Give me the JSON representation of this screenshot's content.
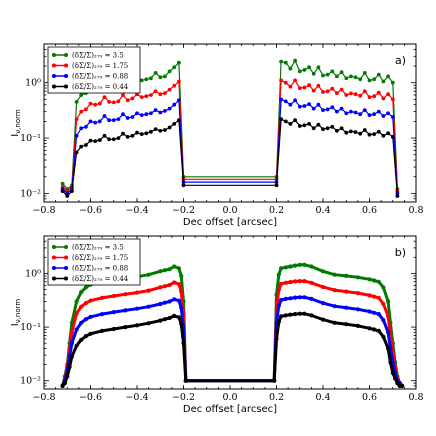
{
  "chart_data": [
    {
      "type": "line",
      "panel_label": "a)",
      "xlabel": "Dec offset [arcsec]",
      "ylabel": "Iₖ,norm",
      "ylabel_main": "I",
      "ylabel_sub": "ν,norm",
      "xlim": [
        -0.8,
        0.8
      ],
      "ylim": [
        0.007,
        5
      ],
      "yscale": "log",
      "xticks": [
        "−0.8",
        "−0.6",
        "−0.4",
        "−0.2",
        "0.0",
        "0.2",
        "0.4",
        "0.6",
        "0.8"
      ],
      "yticks": [
        "10⁻²",
        "10⁻¹",
        "10⁰"
      ],
      "legend_position": "top-left",
      "x": [
        -0.72,
        -0.7,
        -0.68,
        -0.66,
        -0.64,
        -0.62,
        -0.6,
        -0.58,
        -0.56,
        -0.54,
        -0.52,
        -0.5,
        -0.48,
        -0.46,
        -0.44,
        -0.42,
        -0.4,
        -0.38,
        -0.36,
        -0.34,
        -0.32,
        -0.3,
        -0.28,
        -0.26,
        -0.24,
        -0.22,
        -0.2,
        0.2,
        0.22,
        0.24,
        0.26,
        0.28,
        0.3,
        0.32,
        0.34,
        0.36,
        0.38,
        0.4,
        0.42,
        0.44,
        0.46,
        0.48,
        0.5,
        0.52,
        0.54,
        0.56,
        0.58,
        0.6,
        0.62,
        0.64,
        0.66,
        0.68,
        0.7,
        0.72
      ],
      "series": [
        {
          "name": "(δΣ/Σ)₂₇₉ = 3.5",
          "color": "#007a00",
          "values": [
            0.015,
            0.012,
            0.014,
            0.45,
            0.6,
            0.65,
            0.9,
            0.8,
            0.85,
            1.2,
            0.95,
            0.9,
            0.92,
            1.3,
            0.98,
            1.05,
            1.3,
            1.1,
            1.15,
            1.2,
            1.5,
            1.25,
            1.3,
            1.6,
            1.9,
            2.3,
            0.02,
            0.02,
            2.4,
            2.3,
            1.8,
            2.5,
            1.6,
            1.7,
            1.9,
            1.45,
            1.9,
            1.35,
            1.4,
            1.6,
            1.3,
            1.55,
            1.2,
            1.3,
            1.25,
            1.15,
            1.5,
            1.1,
            1.15,
            1.4,
            1.05,
            1.3,
            1.0,
            0.012
          ]
        },
        {
          "name": "(δΣ/Σ)₂₇₉ = 1.75",
          "color": "#ff0000",
          "values": [
            0.013,
            0.011,
            0.013,
            0.22,
            0.3,
            0.33,
            0.42,
            0.4,
            0.42,
            0.55,
            0.45,
            0.44,
            0.46,
            0.6,
            0.48,
            0.52,
            0.62,
            0.55,
            0.57,
            0.6,
            0.7,
            0.62,
            0.65,
            0.75,
            0.88,
            1.05,
            0.018,
            0.018,
            1.1,
            1.0,
            0.85,
            1.1,
            0.8,
            0.82,
            0.9,
            0.72,
            0.88,
            0.68,
            0.7,
            0.78,
            0.65,
            0.75,
            0.6,
            0.64,
            0.62,
            0.58,
            0.7,
            0.55,
            0.57,
            0.66,
            0.52,
            0.62,
            0.5,
            0.011
          ]
        },
        {
          "name": "(δΣ/Σ)₂₇₉ = 0.88",
          "color": "#0000ff",
          "values": [
            0.012,
            0.01,
            0.012,
            0.11,
            0.15,
            0.16,
            0.2,
            0.19,
            0.2,
            0.25,
            0.21,
            0.21,
            0.22,
            0.27,
            0.23,
            0.24,
            0.28,
            0.26,
            0.27,
            0.28,
            0.32,
            0.29,
            0.31,
            0.34,
            0.4,
            0.48,
            0.016,
            0.016,
            0.5,
            0.46,
            0.4,
            0.48,
            0.37,
            0.38,
            0.41,
            0.34,
            0.4,
            0.32,
            0.33,
            0.36,
            0.3,
            0.34,
            0.28,
            0.3,
            0.29,
            0.27,
            0.32,
            0.26,
            0.27,
            0.3,
            0.25,
            0.28,
            0.24,
            0.01
          ]
        },
        {
          "name": "(δΣ/Σ)₂₇₉ = 0.44",
          "color": "#000000",
          "values": [
            0.011,
            0.009,
            0.011,
            0.055,
            0.07,
            0.075,
            0.09,
            0.088,
            0.092,
            0.11,
            0.095,
            0.095,
            0.1,
            0.12,
            0.105,
            0.11,
            0.125,
            0.118,
            0.122,
            0.13,
            0.145,
            0.135,
            0.14,
            0.155,
            0.18,
            0.21,
            0.014,
            0.014,
            0.22,
            0.2,
            0.18,
            0.21,
            0.165,
            0.17,
            0.18,
            0.15,
            0.175,
            0.145,
            0.15,
            0.16,
            0.135,
            0.15,
            0.125,
            0.132,
            0.128,
            0.12,
            0.14,
            0.115,
            0.118,
            0.13,
            0.11,
            0.122,
            0.105,
            0.009
          ]
        }
      ]
    },
    {
      "type": "line",
      "panel_label": "b)",
      "xlabel": "Dec offset [arcsec]",
      "ylabel": "Iₖ,norm",
      "ylabel_main": "I",
      "ylabel_sub": "ν,norm",
      "xlim": [
        -0.8,
        0.8
      ],
      "ylim": [
        0.007,
        5
      ],
      "yscale": "log",
      "xticks": [
        "−0.8",
        "−0.6",
        "−0.4",
        "−0.2",
        "0.0",
        "0.2",
        "0.4",
        "0.6",
        "0.8"
      ],
      "yticks": [
        "10⁻²",
        "10⁻¹",
        "10⁰"
      ],
      "legend_position": "top-left",
      "x": [
        -0.72,
        -0.71,
        -0.7,
        -0.69,
        -0.68,
        -0.66,
        -0.64,
        -0.62,
        -0.6,
        -0.55,
        -0.5,
        -0.45,
        -0.4,
        -0.35,
        -0.3,
        -0.28,
        -0.26,
        -0.24,
        -0.22,
        -0.21,
        -0.2,
        -0.19,
        0.19,
        0.2,
        0.21,
        0.22,
        0.24,
        0.26,
        0.28,
        0.3,
        0.32,
        0.35,
        0.4,
        0.45,
        0.5,
        0.55,
        0.6,
        0.62,
        0.64,
        0.66,
        0.68,
        0.69,
        0.7,
        0.71,
        0.72,
        0.73,
        0.74
      ],
      "series": [
        {
          "name": "(δΣ/Σ)₂₇₉ = 3.5",
          "color": "#007a00",
          "values": [
            0.008,
            0.012,
            0.02,
            0.05,
            0.12,
            0.3,
            0.45,
            0.55,
            0.62,
            0.7,
            0.75,
            0.8,
            0.87,
            0.95,
            1.1,
            1.15,
            1.2,
            1.35,
            1.25,
            0.9,
            0.3,
            0.01,
            0.01,
            0.4,
            0.95,
            1.25,
            1.3,
            1.35,
            1.4,
            1.45,
            1.45,
            1.35,
            1.1,
            0.95,
            0.9,
            0.85,
            0.78,
            0.74,
            0.7,
            0.55,
            0.3,
            0.12,
            0.05,
            0.022,
            0.012,
            0.009,
            0.008
          ]
        },
        {
          "name": "(δΣ/Σ)₂₇₉ = 1.75",
          "color": "#ff0000",
          "values": [
            0.008,
            0.011,
            0.018,
            0.04,
            0.08,
            0.18,
            0.24,
            0.28,
            0.31,
            0.35,
            0.38,
            0.41,
            0.44,
            0.48,
            0.55,
            0.58,
            0.61,
            0.68,
            0.63,
            0.46,
            0.18,
            0.01,
            0.01,
            0.22,
            0.5,
            0.64,
            0.67,
            0.69,
            0.71,
            0.72,
            0.72,
            0.67,
            0.56,
            0.49,
            0.46,
            0.43,
            0.39,
            0.37,
            0.35,
            0.27,
            0.16,
            0.07,
            0.035,
            0.018,
            0.011,
            0.009,
            0.008
          ]
        },
        {
          "name": "(δΣ/Σ)₂₇₉ = 0.88",
          "color": "#0000ff",
          "values": [
            0.008,
            0.01,
            0.015,
            0.028,
            0.05,
            0.09,
            0.12,
            0.14,
            0.155,
            0.175,
            0.19,
            0.205,
            0.22,
            0.24,
            0.27,
            0.285,
            0.3,
            0.33,
            0.31,
            0.23,
            0.1,
            0.01,
            0.01,
            0.12,
            0.25,
            0.32,
            0.335,
            0.345,
            0.355,
            0.36,
            0.36,
            0.335,
            0.28,
            0.245,
            0.23,
            0.215,
            0.195,
            0.185,
            0.175,
            0.135,
            0.08,
            0.04,
            0.022,
            0.014,
            0.01,
            0.009,
            0.008
          ]
        },
        {
          "name": "(δΣ/Σ)₂₇₉ = 0.44",
          "color": "#000000",
          "values": [
            0.008,
            0.009,
            0.012,
            0.018,
            0.028,
            0.045,
            0.058,
            0.068,
            0.075,
            0.085,
            0.092,
            0.1,
            0.108,
            0.118,
            0.132,
            0.14,
            0.148,
            0.162,
            0.152,
            0.115,
            0.05,
            0.01,
            0.01,
            0.06,
            0.125,
            0.158,
            0.165,
            0.17,
            0.175,
            0.178,
            0.178,
            0.165,
            0.138,
            0.12,
            0.113,
            0.105,
            0.095,
            0.09,
            0.085,
            0.066,
            0.04,
            0.022,
            0.014,
            0.011,
            0.009,
            0.008,
            0.008
          ]
        }
      ]
    }
  ]
}
